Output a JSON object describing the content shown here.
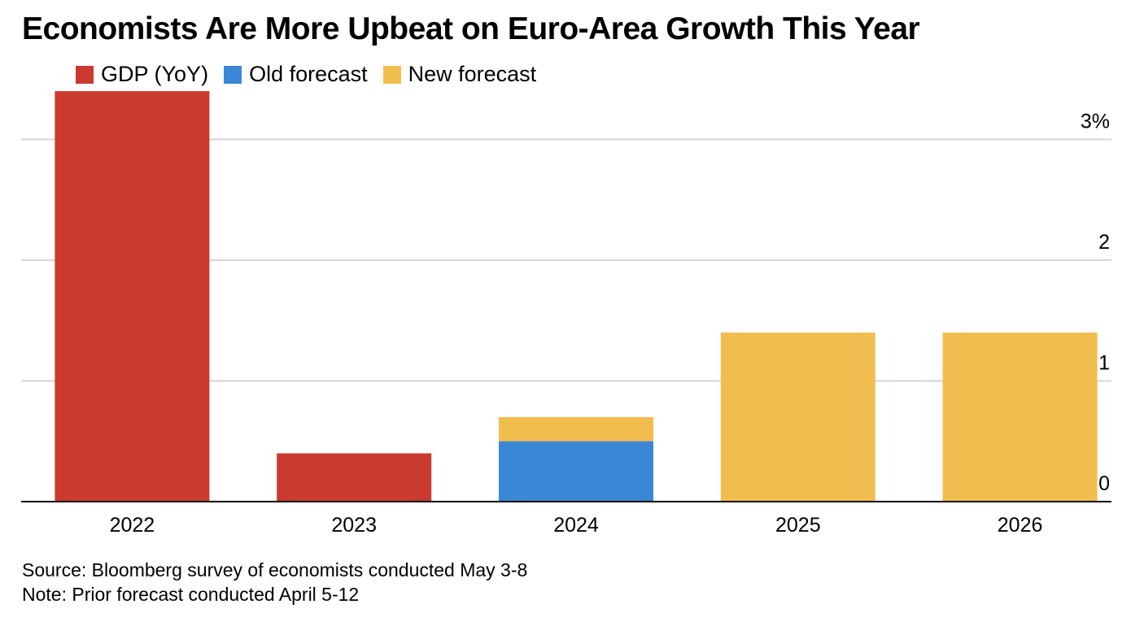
{
  "title": "Economists Are More Upbeat on Euro-Area Growth This Year",
  "legend": [
    {
      "label": "GDP (YoY)",
      "color": "#cb3a2f"
    },
    {
      "label": "Old forecast",
      "color": "#3a87d6"
    },
    {
      "label": "New forecast",
      "color": "#f2bd4f"
    }
  ],
  "chart_data": {
    "type": "bar",
    "categories": [
      "2022",
      "2023",
      "2024",
      "2025",
      "2026"
    ],
    "series": [
      {
        "name": "GDP (YoY)",
        "color": "#cb3a2f",
        "values": [
          3.4,
          0.4,
          null,
          null,
          null
        ]
      },
      {
        "name": "Old forecast",
        "color": "#3a87d6",
        "values": [
          null,
          null,
          0.5,
          null,
          null
        ]
      },
      {
        "name": "New forecast",
        "color": "#f2bd4f",
        "values": [
          null,
          null,
          0.7,
          1.4,
          1.4
        ]
      }
    ],
    "ylim": [
      0,
      3.4
    ],
    "yticks": [
      {
        "value": 3,
        "label": "3%"
      },
      {
        "value": 2,
        "label": "2"
      },
      {
        "value": 1,
        "label": "1"
      },
      {
        "value": 0,
        "label": "0"
      }
    ],
    "grid": true,
    "y_axis_position": "right",
    "legend_position": "top-left"
  },
  "footer": {
    "source": "Source: Bloomberg survey of economists conducted May 3-8",
    "note": "Note: Prior forecast conducted April 5-12"
  }
}
